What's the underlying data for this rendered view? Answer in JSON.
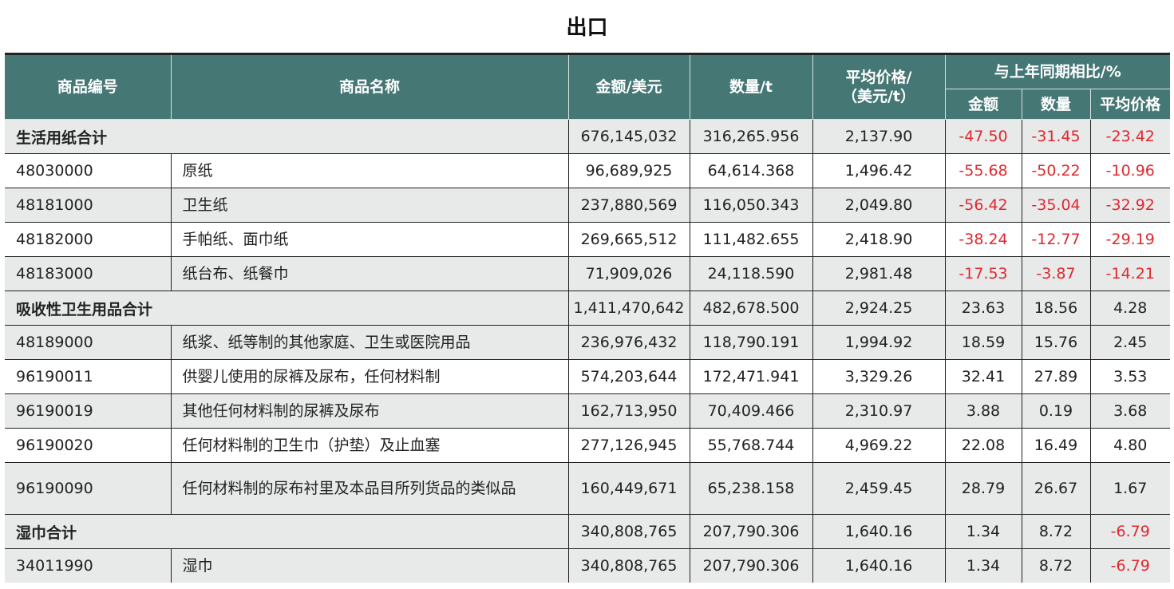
{
  "title": "出口",
  "header": {
    "code": "商品编号",
    "name": "商品名称",
    "amount": "金额/美元",
    "quantity": "数量/t",
    "avg_price_line1": "平均价格/",
    "avg_price_line2": "（美元/t）",
    "yoy": "与上年同期相比/%",
    "yoy_amount": "金额",
    "yoy_quantity": "数量",
    "yoy_avg_price": "平均价格"
  },
  "rows": [
    {
      "type": "subtotal",
      "label": "生活用纸合计",
      "amount": "676,145,032",
      "quantity": "316,265.956",
      "avg_price": "2,137.90",
      "yoy_amount": "-47.50",
      "yoy_quantity": "-31.45",
      "yoy_avg_price": "-23.42"
    },
    {
      "type": "item",
      "code": "48030000",
      "name": "原纸",
      "amount": "96,689,925",
      "quantity": "64,614.368",
      "avg_price": "1,496.42",
      "yoy_amount": "-55.68",
      "yoy_quantity": "-50.22",
      "yoy_avg_price": "-10.96"
    },
    {
      "type": "item",
      "code": "48181000",
      "name": "卫生纸",
      "amount": "237,880,569",
      "quantity": "116,050.343",
      "avg_price": "2,049.80",
      "yoy_amount": "-56.42",
      "yoy_quantity": "-35.04",
      "yoy_avg_price": "-32.92"
    },
    {
      "type": "item",
      "code": "48182000",
      "name": "手帕纸、面巾纸",
      "amount": "269,665,512",
      "quantity": "111,482.655",
      "avg_price": "2,418.90",
      "yoy_amount": "-38.24",
      "yoy_quantity": "-12.77",
      "yoy_avg_price": "-29.19"
    },
    {
      "type": "item",
      "code": "48183000",
      "name": "纸台布、纸餐巾",
      "amount": "71,909,026",
      "quantity": "24,118.590",
      "avg_price": "2,981.48",
      "yoy_amount": "-17.53",
      "yoy_quantity": "-3.87",
      "yoy_avg_price": "-14.21"
    },
    {
      "type": "subtotal",
      "label": "吸收性卫生用品合计",
      "amount": "1,411,470,642",
      "quantity": "482,678.500",
      "avg_price": "2,924.25",
      "yoy_amount": "23.63",
      "yoy_quantity": "18.56",
      "yoy_avg_price": "4.28"
    },
    {
      "type": "item",
      "code": "48189000",
      "name": "纸浆、纸等制的其他家庭、卫生或医院用品",
      "amount": "236,976,432",
      "quantity": "118,790.191",
      "avg_price": "1,994.92",
      "yoy_amount": "18.59",
      "yoy_quantity": "15.76",
      "yoy_avg_price": "2.45"
    },
    {
      "type": "item",
      "code": "96190011",
      "name": "供婴儿使用的尿裤及尿布，任何材料制",
      "amount": "574,203,644",
      "quantity": "172,471.941",
      "avg_price": "3,329.26",
      "yoy_amount": "32.41",
      "yoy_quantity": "27.89",
      "yoy_avg_price": "3.53"
    },
    {
      "type": "item",
      "code": "96190019",
      "name": "其他任何材料制的尿裤及尿布",
      "amount": "162,713,950",
      "quantity": "70,409.466",
      "avg_price": "2,310.97",
      "yoy_amount": "3.88",
      "yoy_quantity": "0.19",
      "yoy_avg_price": "3.68"
    },
    {
      "type": "item",
      "code": "96190020",
      "name": "任何材料制的卫生巾（护垫）及止血塞",
      "amount": "277,126,945",
      "quantity": "55,768.744",
      "avg_price": "4,969.22",
      "yoy_amount": "22.08",
      "yoy_quantity": "16.49",
      "yoy_avg_price": "4.80"
    },
    {
      "type": "item",
      "code": "96190090",
      "name": "任何材料制的尿布衬里及本品目所列货品的类似品",
      "amount": "160,449,671",
      "quantity": "65,238.158",
      "avg_price": "2,459.45",
      "yoy_amount": "28.79",
      "yoy_quantity": "26.67",
      "yoy_avg_price": "1.67"
    },
    {
      "type": "subtotal",
      "label": "湿巾合计",
      "amount": "340,808,765",
      "quantity": "207,790.306",
      "avg_price": "1,640.16",
      "yoy_amount": "1.34",
      "yoy_quantity": "8.72",
      "yoy_avg_price": "-6.79"
    },
    {
      "type": "item",
      "code": "34011990",
      "name": "湿巾",
      "amount": "340,808,765",
      "quantity": "207,790.306",
      "avg_price": "1,640.16",
      "yoy_amount": "1.34",
      "yoy_quantity": "8.72",
      "yoy_avg_price": "-6.79"
    }
  ],
  "colors": {
    "header_bg": "#457775",
    "negative": "#e0282e",
    "zebra": "#e8e9e9"
  }
}
